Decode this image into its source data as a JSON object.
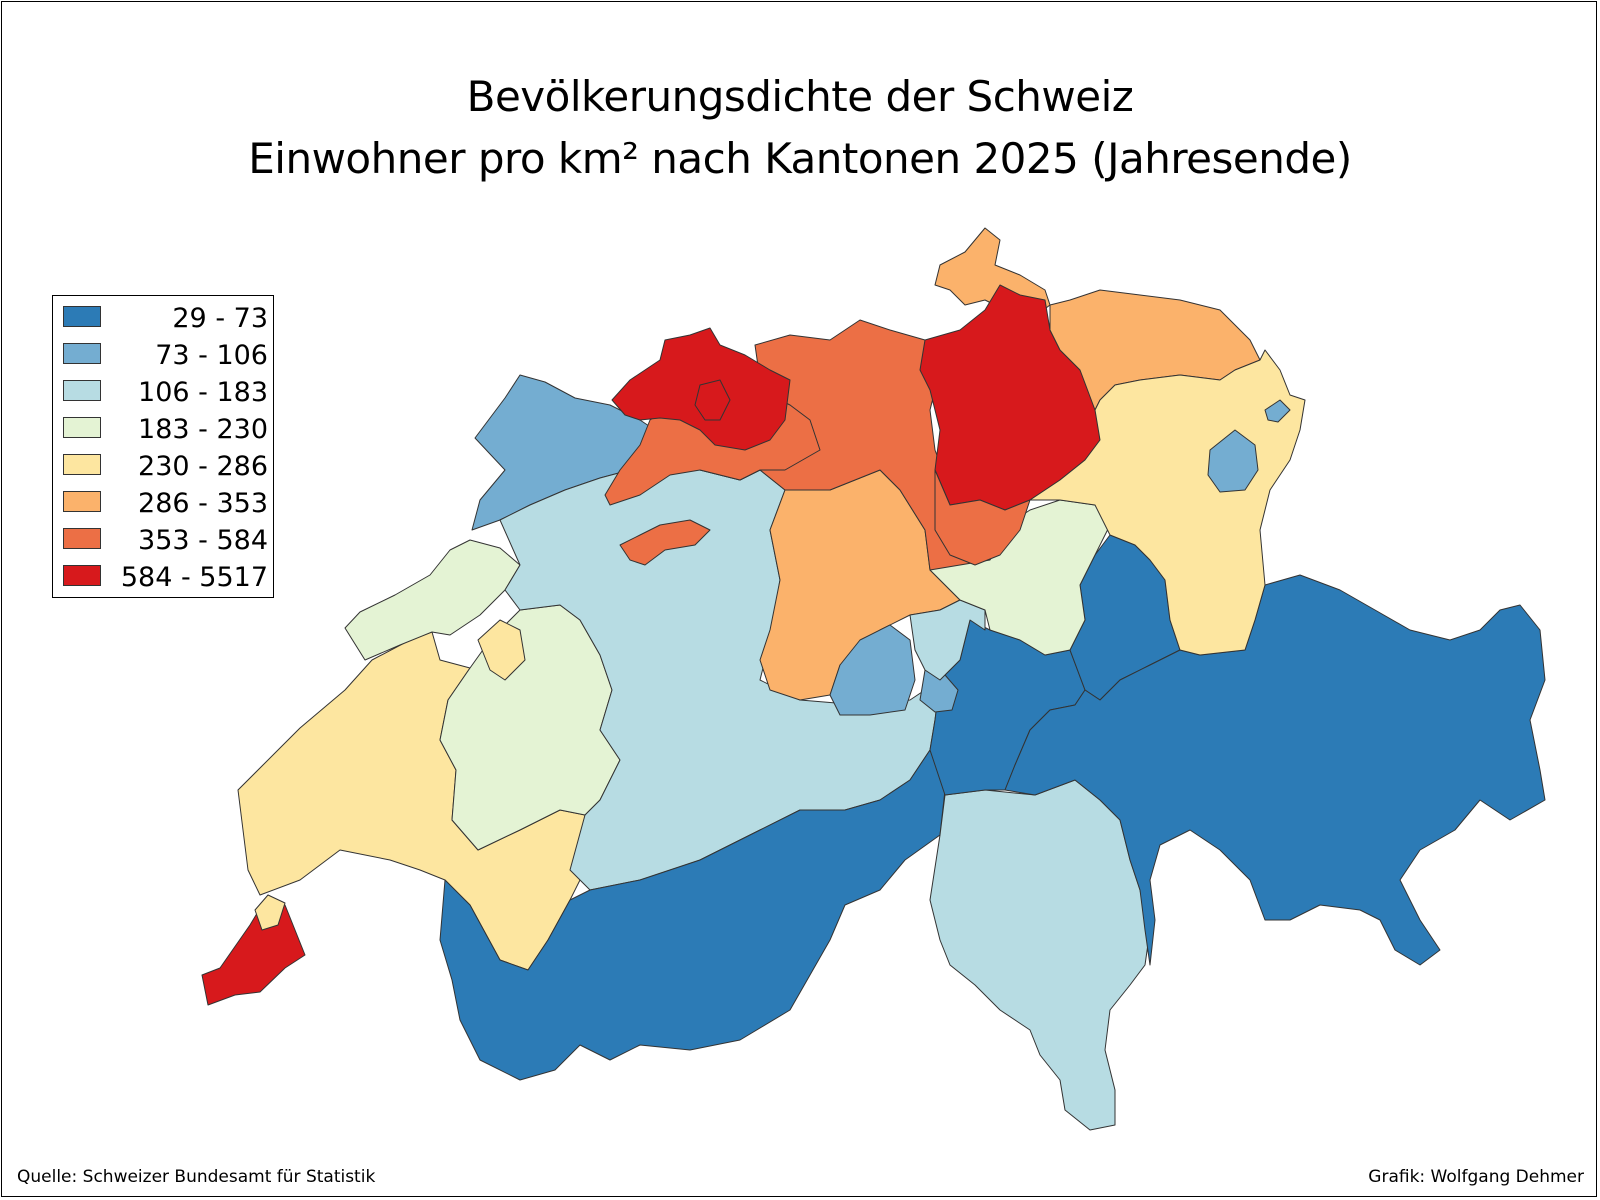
{
  "title": {
    "line1": "Bevölkerungsdichte der Schweiz",
    "line2": "Einwohner pro km² nach Kantonen 2025 (Jahresende)"
  },
  "legend": [
    {
      "label": "29 - 73",
      "color": "#2c7bb6"
    },
    {
      "label": "73 - 106",
      "color": "#74add1"
    },
    {
      "label": "106 - 183",
      "color": "#b7dce3"
    },
    {
      "label": "183 - 230",
      "color": "#e4f3d4"
    },
    {
      "label": "230 - 286",
      "color": "#fde6a0"
    },
    {
      "label": "286 - 353",
      "color": "#fbb26b"
    },
    {
      "label": "353 - 584",
      "color": "#ec6f45"
    },
    {
      "label": "584 - 5517",
      "color": "#d7191c"
    }
  ],
  "source": "Quelle: Schweizer Bundesamt für Statistik",
  "credit": "Grafik: Wolfgang Dehmer"
}
